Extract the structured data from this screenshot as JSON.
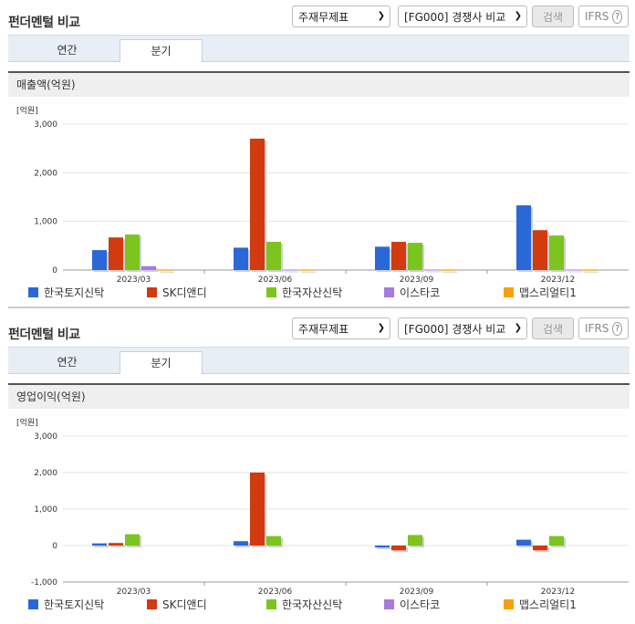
{
  "panels": [
    {
      "title": "펀더멘털 비교",
      "dropdown1": "주재무제표",
      "dropdown2": "[FG000] 경쟁사 비교",
      "search_label": "검색",
      "ifrs_label": "IFRS",
      "help_glyph": "?",
      "tabs": [
        {
          "label": "연간"
        },
        {
          "label": "분기"
        }
      ],
      "active_tab": 1,
      "section_label": "매출액(억원)",
      "unit_label": "[억원]"
    },
    {
      "title": "펀더멘털 비교",
      "dropdown1": "주재무제표",
      "dropdown2": "[FG000] 경쟁사 비교",
      "search_label": "검색",
      "ifrs_label": "IFRS",
      "help_glyph": "?",
      "tabs": [
        {
          "label": "연간"
        },
        {
          "label": "분기"
        }
      ],
      "active_tab": 1,
      "section_label": "영업이익(억원)",
      "unit_label": "[억원]"
    }
  ],
  "legend": [
    {
      "name": "한국토지신탁",
      "color": "#2a68d8"
    },
    {
      "name": "SK디앤디",
      "color": "#d23a10"
    },
    {
      "name": "한국자산신탁",
      "color": "#7cc41e"
    },
    {
      "name": "이스타코",
      "color": "#a57be0"
    },
    {
      "name": "맵스리얼티1",
      "color": "#f5a20a"
    }
  ],
  "chart_data": [
    {
      "type": "bar",
      "title": "매출액(억원)",
      "ylabel": "[억원]",
      "categories": [
        "2023/03",
        "2023/06",
        "2023/09",
        "2023/12"
      ],
      "ylim": [
        0,
        3000
      ],
      "yticks": [
        0,
        1000,
        2000,
        3000
      ],
      "ytick_labels": [
        "0",
        "1,000",
        "2,000",
        "3,000"
      ],
      "series": [
        {
          "name": "한국토지신탁",
          "values": [
            410,
            460,
            480,
            1330
          ]
        },
        {
          "name": "SK디앤디",
          "values": [
            670,
            2700,
            580,
            820
          ]
        },
        {
          "name": "한국자산신탁",
          "values": [
            730,
            580,
            560,
            710
          ]
        },
        {
          "name": "이스타코",
          "values": [
            80,
            10,
            10,
            10
          ]
        },
        {
          "name": "맵스리얼티1",
          "values": [
            5,
            5,
            5,
            5
          ]
        }
      ],
      "legend_position": "bottom"
    },
    {
      "type": "bar",
      "title": "영업이익(억원)",
      "ylabel": "[억원]",
      "categories": [
        "2023/03",
        "2023/06",
        "2023/09",
        "2023/12"
      ],
      "ylim": [
        -1000,
        3000
      ],
      "yticks": [
        -1000,
        0,
        1000,
        2000,
        3000
      ],
      "ytick_labels": [
        "-1,000",
        "0",
        "1,000",
        "2,000",
        "3,000"
      ],
      "series": [
        {
          "name": "한국토지신탁",
          "values": [
            60,
            120,
            -50,
            160
          ]
        },
        {
          "name": "SK디앤디",
          "values": [
            70,
            2000,
            -130,
            -130
          ]
        },
        {
          "name": "한국자산신탁",
          "values": [
            310,
            260,
            290,
            260
          ]
        },
        {
          "name": "이스타코",
          "values": [
            0,
            0,
            0,
            0
          ]
        },
        {
          "name": "맵스리얼티1",
          "values": [
            0,
            0,
            0,
            0
          ]
        }
      ],
      "legend_position": "bottom"
    }
  ]
}
